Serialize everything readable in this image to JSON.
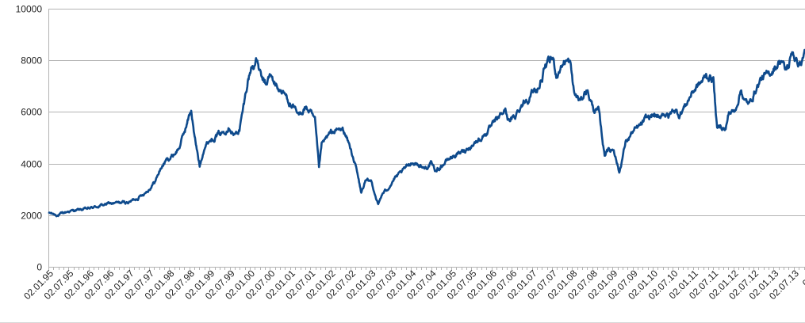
{
  "chart_data": {
    "type": "line",
    "title": "",
    "xlabel": "",
    "ylabel": "",
    "ylim": [
      0,
      10000
    ],
    "y_ticks": [
      "0",
      "2000",
      "4000",
      "6000",
      "8000",
      "10000"
    ],
    "grid": "horizontal",
    "legend": "none",
    "x_tick_labels": [
      "02.01.95",
      "02.07.95",
      "02.01.96",
      "02.07.96",
      "02.01.97",
      "02.07.97",
      "02.01.98",
      "02.07.98",
      "02.01.99",
      "02.07.99",
      "02.01.00",
      "02.07.00",
      "02.01.01",
      "02.07.01",
      "02.01.02",
      "02.07.02",
      "02.01.03",
      "02.07.03",
      "02.01.04",
      "02.07.04",
      "02.01.05",
      "02.07.05",
      "02.01.06",
      "02.07.06",
      "02.01.07",
      "02.07.07",
      "02.01.08",
      "02.07.08",
      "02.01.09",
      "02.07.09",
      "02.01.10",
      "02.07.10",
      "02.01.11",
      "02.07.11",
      "02.01.12",
      "02.07.12",
      "02.01.13",
      "02.07.13",
      "02.0"
    ],
    "series": [
      {
        "color": "#0e4a8c",
        "x": [
          "1995-01-02",
          "1995-04-01",
          "1995-07-01",
          "1996-01-01",
          "1996-07-01",
          "1997-01-01",
          "1997-04-01",
          "1997-07-01",
          "1997-09-01",
          "1997-10-15",
          "1997-12-01",
          "1998-02-01",
          "1998-04-01",
          "1998-06-01",
          "1998-07-20",
          "1998-08-20",
          "1998-10-05",
          "1998-11-15",
          "1999-01-01",
          "1999-03-01",
          "1999-05-01",
          "1999-07-01",
          "1999-08-15",
          "1999-10-01",
          "1999-11-15",
          "1999-12-15",
          "2000-01-15",
          "2000-03-07",
          "2000-04-15",
          "2000-05-25",
          "2000-07-01",
          "2000-09-01",
          "2000-10-15",
          "2000-12-01",
          "2001-01-20",
          "2001-03-22",
          "2001-05-15",
          "2001-07-01",
          "2001-08-15",
          "2001-09-21",
          "2001-10-15",
          "2001-12-01",
          "2002-01-15",
          "2002-03-15",
          "2002-05-01",
          "2002-06-15",
          "2002-07-24",
          "2002-08-20",
          "2002-10-09",
          "2002-11-15",
          "2003-01-10",
          "2003-03-12",
          "2003-04-15",
          "2003-06-01",
          "2003-08-01",
          "2003-10-01",
          "2004-01-02",
          "2004-03-01",
          "2004-05-01",
          "2004-07-01",
          "2004-08-15",
          "2004-10-01",
          "2005-01-01",
          "2005-04-15",
          "2005-07-01",
          "2005-10-01",
          "2006-01-01",
          "2006-05-08",
          "2006-06-13",
          "2006-08-01",
          "2006-10-01",
          "2007-01-02",
          "2007-03-14",
          "2007-05-01",
          "2007-07-13",
          "2007-08-16",
          "2007-09-15",
          "2007-11-01",
          "2007-12-15",
          "2008-01-22",
          "2008-03-17",
          "2008-05-15",
          "2008-07-15",
          "2008-09-01",
          "2008-10-24",
          "2008-11-15",
          "2008-12-15",
          "2009-01-15",
          "2009-03-06",
          "2009-05-01",
          "2009-07-01",
          "2009-09-01",
          "2009-11-01",
          "2010-01-15",
          "2010-02-10",
          "2010-04-15",
          "2010-05-25",
          "2010-07-15",
          "2010-09-01",
          "2010-11-01",
          "2011-01-01",
          "2011-04-01",
          "2011-05-02",
          "2011-07-07",
          "2011-08-10",
          "2011-09-12",
          "2011-10-27",
          "2011-11-25",
          "2012-01-15",
          "2012-03-16",
          "2012-04-15",
          "2012-06-01",
          "2012-07-15",
          "2012-09-14",
          "2012-11-15",
          "2013-01-15",
          "2013-03-15",
          "2013-04-18",
          "2013-05-22",
          "2013-06-24",
          "2013-08-01",
          "2013-09-15",
          "2013-10-15"
        ],
        "y": [
          2090,
          2000,
          2150,
          2250,
          2450,
          2500,
          2700,
          3000,
          3350,
          3800,
          4100,
          4300,
          4600,
          5400,
          6100,
          5000,
          3900,
          4650,
          4900,
          5100,
          5200,
          5500,
          5100,
          5300,
          6400,
          7200,
          7700,
          8000,
          7300,
          7000,
          7400,
          7000,
          6800,
          6600,
          6200,
          5800,
          6200,
          6000,
          5600,
          3800,
          4700,
          5000,
          5200,
          5300,
          5300,
          4800,
          4300,
          3900,
          2850,
          3300,
          3300,
          2400,
          2800,
          3000,
          3400,
          3600,
          4050,
          4000,
          3800,
          4000,
          3700,
          3900,
          4250,
          4450,
          4700,
          5000,
          5400,
          6100,
          5600,
          5800,
          6300,
          6700,
          7000,
          7700,
          8050,
          7400,
          7700,
          8000,
          7900,
          6700,
          6400,
          6900,
          6100,
          6000,
          4300,
          4600,
          4500,
          4600,
          3650,
          4800,
          5200,
          5400,
          5700,
          5900,
          5700,
          6000,
          5800,
          6100,
          5900,
          6300,
          6800,
          7200,
          7400,
          7300,
          5300,
          5500,
          5300,
          6000,
          6000,
          6900,
          6400,
          6300,
          6800,
          7300,
          7400,
          7750,
          8050,
          7600,
          7800,
          8400,
          7900,
          7900,
          8400
        ]
      }
    ]
  }
}
